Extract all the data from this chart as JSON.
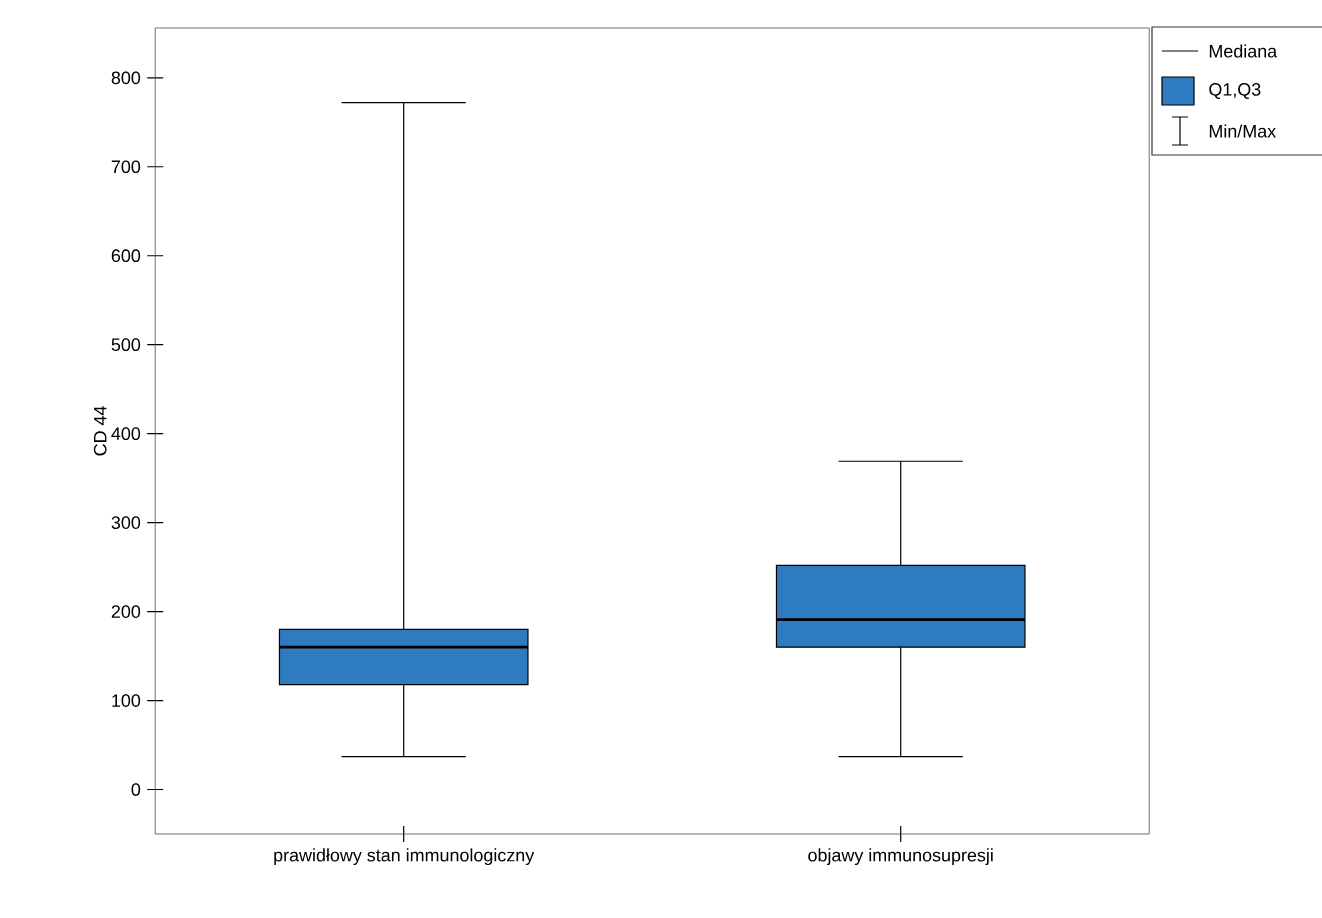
{
  "chart_data": {
    "type": "box",
    "ylabel": "CD 44",
    "categories": [
      "prawidłowy stan immunologiczny",
      "objawy immunosupresji"
    ],
    "color": "#2e7bbf",
    "boxes": [
      {
        "low": 37,
        "q1": 118,
        "median": 160,
        "q3": 180,
        "high": 772
      },
      {
        "low": 37,
        "q1": 160,
        "median": 191,
        "q3": 252,
        "high": 369
      }
    ],
    "ylim": [
      -50,
      856
    ],
    "yticks": [
      0,
      100,
      200,
      300,
      400,
      500,
      600,
      700,
      800
    ],
    "annotations": [
      "Mediana",
      "Q1,Q3",
      "Min/Max"
    ]
  }
}
